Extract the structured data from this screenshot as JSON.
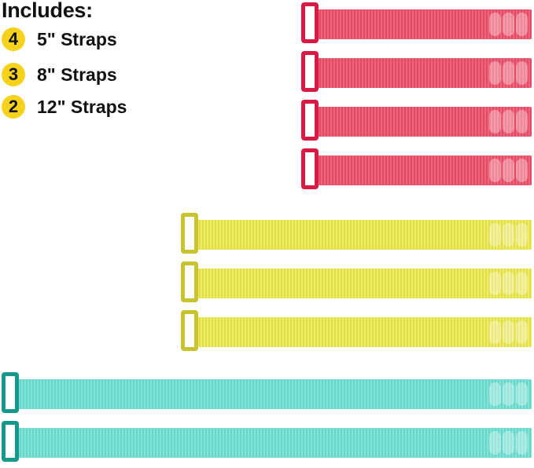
{
  "includes": {
    "title": "Includes:",
    "items": [
      {
        "count": "4",
        "label": "5\" Straps"
      },
      {
        "count": "3",
        "label": "8\" Straps"
      },
      {
        "count": "2",
        "label": "12\" Straps"
      }
    ],
    "badge_color": "#f6d21c"
  },
  "strap_groups": [
    {
      "size": "5\"",
      "quantity": 4,
      "body_color": "#ee4f6a",
      "buckle_color": "#d91a45"
    },
    {
      "size": "8\"",
      "quantity": 3,
      "body_color": "#ecea4e",
      "buckle_color": "#c8c42e"
    },
    {
      "size": "12\"",
      "quantity": 2,
      "body_color": "#6fe0d4",
      "buckle_color": "#14998c"
    }
  ]
}
